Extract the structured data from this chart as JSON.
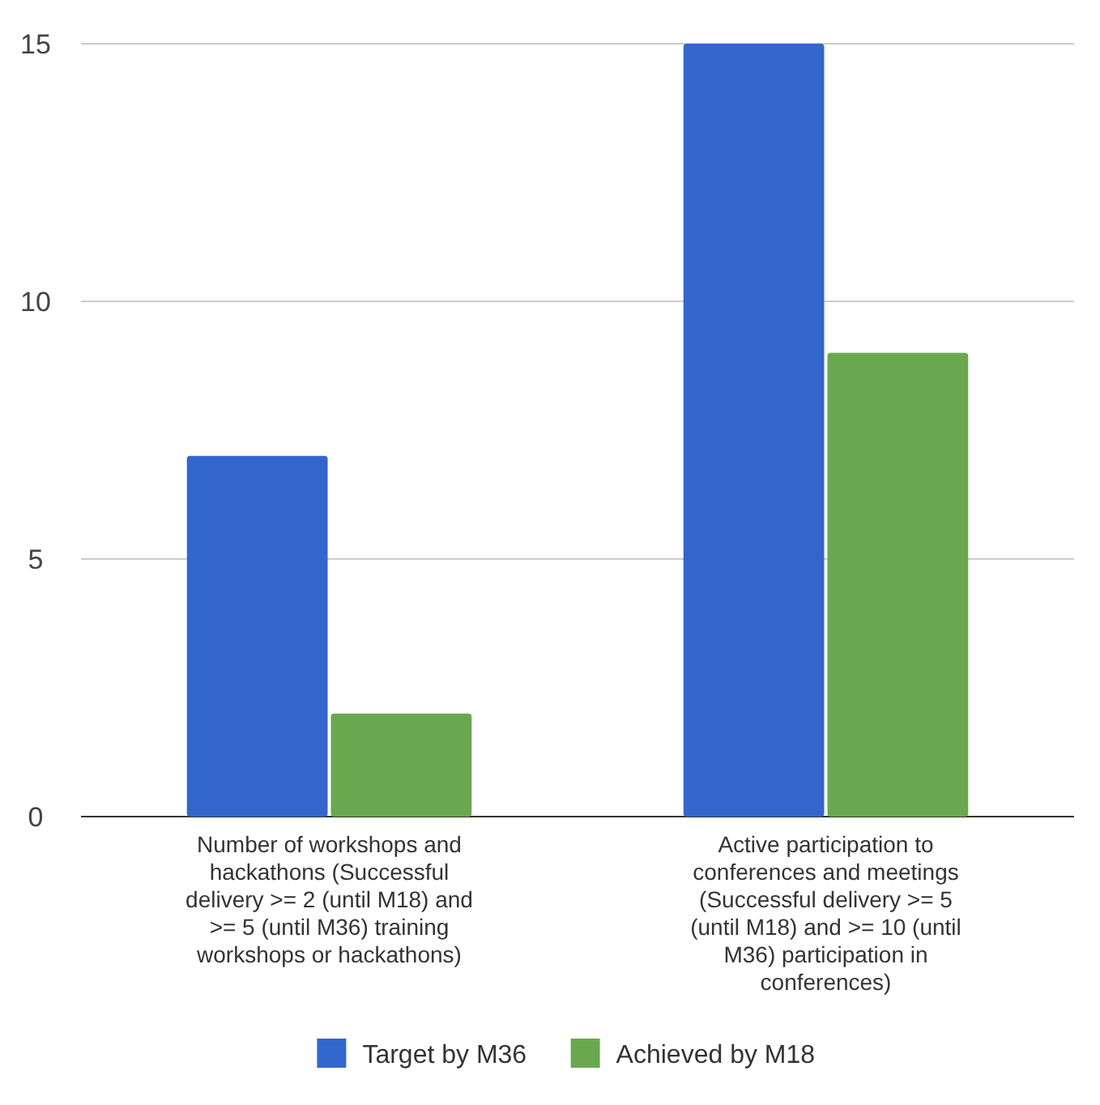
{
  "chart_data": {
    "type": "bar",
    "categories": [
      "Number of workshops and hackathons (Successful delivery >= 2 (until M18) and >= 5 (until M36) training workshops or hackathons)",
      "Active participation to conferences and meetings (Successful delivery >= 5 (until M18) and >= 10 (until M36) participation in conferences)"
    ],
    "series": [
      {
        "name": "Target by M36",
        "color": "#3366cc",
        "values": [
          7,
          15
        ]
      },
      {
        "name": "Achieved by M18",
        "color": "#6aa84f",
        "values": [
          2,
          9
        ]
      }
    ],
    "ylim": [
      0,
      15
    ],
    "yticks": [
      0,
      5,
      10,
      15
    ],
    "grid": "y",
    "legend": "bottom"
  }
}
